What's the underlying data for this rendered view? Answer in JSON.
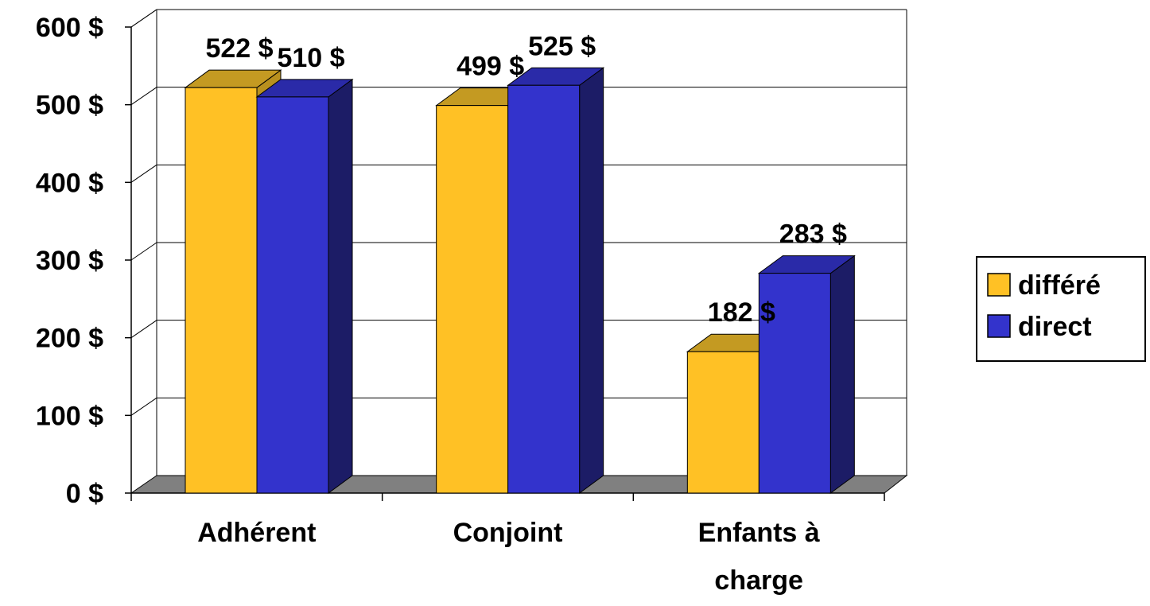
{
  "chart_data": {
    "type": "bar",
    "style": "3d-clustered-column",
    "categories": [
      "Adhérent",
      "Conjoint",
      "Enfants à charge"
    ],
    "category_label_lines": [
      [
        "Adhérent"
      ],
      [
        "Conjoint"
      ],
      [
        "Enfants à",
        "charge"
      ]
    ],
    "series": [
      {
        "name": "différé",
        "values": [
          522,
          499,
          182
        ],
        "labels": [
          "522 $",
          "499 $",
          "182 $"
        ]
      },
      {
        "name": "direct",
        "values": [
          510,
          525,
          283
        ],
        "labels": [
          "510 $",
          "525 $",
          "283 $"
        ]
      }
    ],
    "y_ticks": [
      0,
      100,
      200,
      300,
      400,
      500,
      600
    ],
    "y_tick_labels": [
      "0 $",
      "100 $",
      "200 $",
      "300 $",
      "400 $",
      "500 $",
      "600 $"
    ],
    "ylim": [
      0,
      600
    ],
    "grid": true,
    "legend_position": "right",
    "colors": {
      "series": [
        {
          "face": "#FFC125",
          "top": "#C49A22",
          "side": "#B8901E"
        },
        {
          "face": "#3333CC",
          "top": "#2A2AA8",
          "side": "#1C1C66"
        }
      ],
      "floor": "#808080",
      "grid": "#000000"
    }
  }
}
